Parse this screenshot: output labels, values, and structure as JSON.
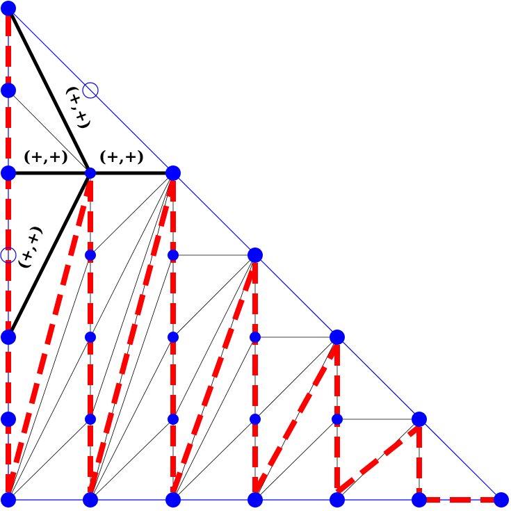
{
  "diagram": {
    "colors": {
      "background": "#ffffff",
      "boundary": "#0000ff",
      "mesh": "#000000",
      "path": "#ff0000",
      "node": "#0000ff",
      "star": "#000000"
    },
    "labels": {
      "upper_diagonal": "(+,+)",
      "left_horizontal": "(+,+)",
      "right_horizontal": "(+,+)",
      "lower_diagonal": "(+,+)"
    }
  }
}
